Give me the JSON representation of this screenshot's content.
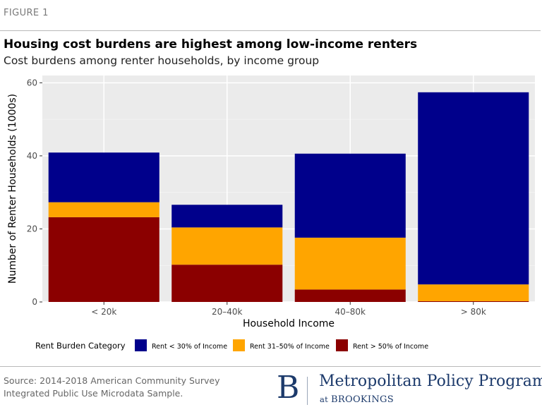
{
  "figure_label": "FIGURE 1",
  "chart_data": {
    "type": "bar",
    "stacked": true,
    "title": "Housing cost burdens are highest among low-income renters",
    "subtitle": "Cost burdens among renter households, by income group",
    "xlabel": "Household Income",
    "ylabel": "Number of Renter Households (1000s)",
    "ylim": [
      0,
      62
    ],
    "yticks": [
      0,
      20,
      40,
      60
    ],
    "grid": true,
    "legend_position": "bottom",
    "legend_title": "Rent Burden Category",
    "categories": [
      "< 20k",
      "20–40k",
      "40–80k",
      "> 80k"
    ],
    "series": [
      {
        "name": "Rent > 50% of Income",
        "color": "#8b0000",
        "values": [
          23.2,
          10.2,
          3.4,
          0.2
        ]
      },
      {
        "name": "Rent 31–50% of Income",
        "color": "#ffa500",
        "values": [
          4.1,
          10.2,
          14.2,
          4.6
        ]
      },
      {
        "name": "Rent < 30% of Income",
        "color": "#00008b",
        "values": [
          13.6,
          6.2,
          23.0,
          52.6
        ]
      }
    ],
    "legend_order": [
      2,
      1,
      0
    ]
  },
  "source": {
    "line1": "Source: 2014-2018 American Community Survey",
    "line2": "Integrated Public Use Microdata Sample."
  },
  "logo": {
    "letter": "B",
    "name": "Metropolitan Policy Program",
    "at": "at",
    "org": "BROOKINGS"
  }
}
